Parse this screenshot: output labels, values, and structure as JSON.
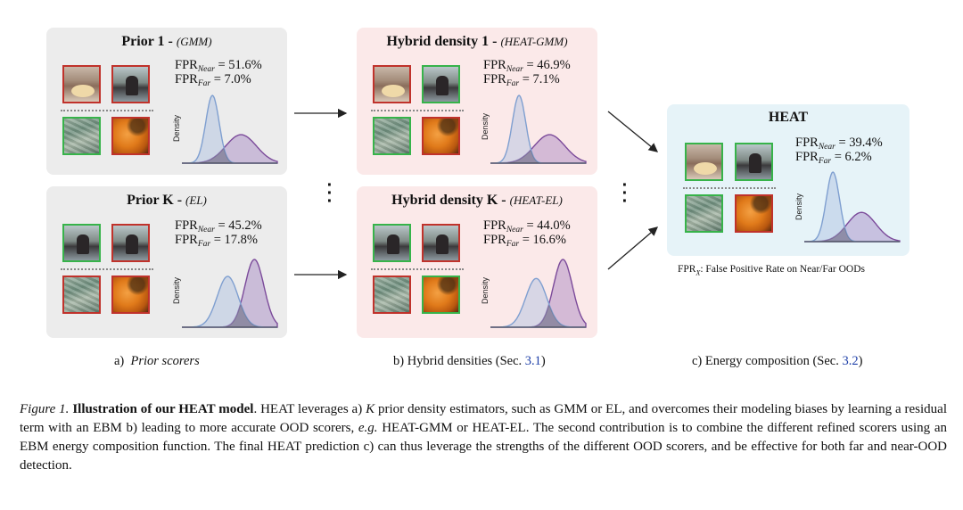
{
  "panels": {
    "prior_1": {
      "title": "Prior 1",
      "subtitle": "(GMM)",
      "fpr_near_label": "FPR",
      "fpr_near_sub": "Near",
      "fpr_near_value": "= 51.6%",
      "fpr_far_label": "FPR",
      "fpr_far_sub": "Far",
      "fpr_far_value": "=   7.0%",
      "density_label": "Density"
    },
    "prior_k": {
      "title": "Prior K",
      "subtitle": "(EL)",
      "fpr_near_label": "FPR",
      "fpr_near_sub": "Near",
      "fpr_near_value": "= 45.2%",
      "fpr_far_label": "FPR",
      "fpr_far_sub": "Far",
      "fpr_far_value": "= 17.8%",
      "density_label": "Density"
    },
    "hybrid_1": {
      "title": "Hybrid density 1",
      "subtitle": "(HEAT-GMM)",
      "fpr_near_label": "FPR",
      "fpr_near_sub": "Near",
      "fpr_near_value": "= 46.9%",
      "fpr_far_label": "FPR",
      "fpr_far_sub": "Far",
      "fpr_far_value": "=   7.1%",
      "density_label": "Density"
    },
    "hybrid_k": {
      "title": "Hybrid density K",
      "subtitle": "(HEAT-EL)",
      "fpr_near_label": "FPR",
      "fpr_near_sub": "Near",
      "fpr_near_value": "= 44.0%",
      "fpr_far_label": "FPR",
      "fpr_far_sub": "Far",
      "fpr_far_value": "= 16.6%",
      "density_label": "Density"
    },
    "heat": {
      "title": "HEAT",
      "fpr_near_label": "FPR",
      "fpr_near_sub": "Near",
      "fpr_near_value": "= 39.4%",
      "fpr_far_label": "FPR",
      "fpr_far_sub": "Far",
      "fpr_far_value": "=   6.2%",
      "density_label": "Density"
    }
  },
  "legend_note": {
    "prefix": "FPR",
    "sub": "X",
    "text": ": False Positive Rate on Near/Far OODs"
  },
  "column_captions": {
    "a_letter": "a)",
    "a_text": "Prior scorers",
    "b_text": "b)  Hybrid densities (Sec. ",
    "b_ref": "3.1",
    "b_close": ")",
    "c_text": "c)  Energy composition (Sec. ",
    "c_ref": "3.2",
    "c_close": ")"
  },
  "figure_caption": {
    "label": "Figure 1.",
    "bold_title": "Illustration of our HEAT model",
    "part1": ". HEAT leverages a) ",
    "k": "K",
    "part2": " prior density estimators, such as GMM or EL, and overcomes their modeling biases by learning a residual term with an EBM b) leading to more accurate OOD scorers, ",
    "eg": "e.g.",
    "part3": " HEAT-GMM or HEAT-EL. The second contribution is to combine the different refined scorers using an EBM energy composition function. The final HEAT prediction c) can thus leverage the strengths of the different OOD scorers, and be effective for both far and near-OOD detection."
  },
  "colors": {
    "prior_bg": "#ececec",
    "hybrid_bg": "#fbe9e9",
    "heat_bg": "#e6f3f8",
    "blue_curve": "#7f9fd0",
    "purple_curve": "#7b4a9a"
  },
  "density_plots": {
    "prior_1": {
      "blue": {
        "mu": 0.32,
        "sigma": 0.07,
        "h": 1.0
      },
      "purple": {
        "mu": 0.62,
        "sigma": 0.16,
        "h": 0.42
      }
    },
    "hybrid_1": {
      "blue": {
        "mu": 0.3,
        "sigma": 0.07,
        "h": 1.0
      },
      "purple": {
        "mu": 0.62,
        "sigma": 0.16,
        "h": 0.42
      }
    },
    "prior_k": {
      "blue": {
        "mu": 0.48,
        "sigma": 0.11,
        "h": 0.75
      },
      "purple": {
        "mu": 0.76,
        "sigma": 0.1,
        "h": 1.0
      }
    },
    "hybrid_k": {
      "blue": {
        "mu": 0.48,
        "sigma": 0.11,
        "h": 0.72
      },
      "purple": {
        "mu": 0.76,
        "sigma": 0.1,
        "h": 1.0
      }
    },
    "heat": {
      "blue": {
        "mu": 0.3,
        "sigma": 0.07,
        "h": 1.0
      },
      "purple": {
        "mu": 0.6,
        "sigma": 0.15,
        "h": 0.42
      }
    }
  }
}
